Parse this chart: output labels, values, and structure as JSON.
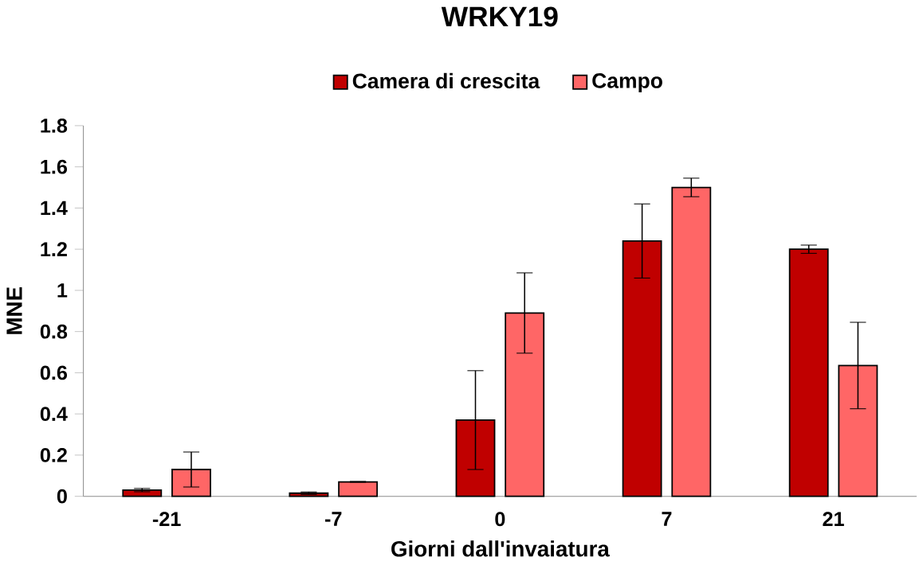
{
  "chart_data": {
    "type": "bar",
    "title": "WRKY19",
    "xlabel": "Giorni dall'invaiatura",
    "ylabel": "MNE",
    "categories": [
      "-21",
      "-7",
      "0",
      "7",
      "21"
    ],
    "series": [
      {
        "name": "Camera di crescita",
        "color": "#c00000",
        "values": [
          0.03,
          0.015,
          0.37,
          1.24,
          1.2
        ],
        "errors": [
          0.008,
          0.006,
          0.24,
          0.18,
          0.02
        ]
      },
      {
        "name": "Campo",
        "color": "#ff6666",
        "values": [
          0.13,
          0.07,
          0.89,
          1.5,
          0.635
        ],
        "errors": [
          0.085,
          0.002,
          0.195,
          0.045,
          0.21
        ]
      }
    ],
    "ylim": [
      0,
      1.8
    ],
    "yticks": [
      0,
      0.2,
      0.4,
      0.6,
      0.8,
      1,
      1.2,
      1.4,
      1.6,
      1.8
    ],
    "legend": "top",
    "grid": false
  }
}
